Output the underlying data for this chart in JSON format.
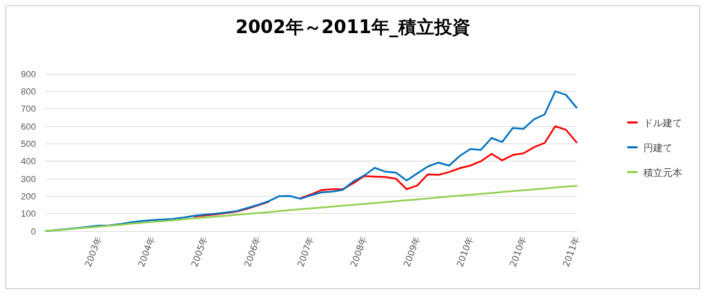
{
  "chart_data": {
    "type": "line",
    "title": "2002年～2011年_積立投資",
    "categories": [
      null,
      null,
      null,
      null,
      null,
      "2003年",
      null,
      null,
      null,
      null,
      "2004年",
      null,
      null,
      null,
      null,
      "2005年",
      null,
      null,
      null,
      null,
      "2006年",
      null,
      null,
      null,
      null,
      "2007年",
      null,
      null,
      null,
      null,
      "2008年",
      null,
      null,
      null,
      null,
      "2009年",
      null,
      null,
      null,
      null,
      "2010年",
      null,
      null,
      null,
      null,
      "2010年",
      null,
      null,
      null,
      null,
      "2011年"
    ],
    "ylim": [
      0,
      900
    ],
    "yticks": [
      0,
      100,
      200,
      300,
      400,
      500,
      600,
      700,
      800,
      900
    ],
    "grid": "y",
    "legend": "right",
    "marker": "none",
    "line_style": "solid",
    "series": [
      {
        "name": "ドル建て",
        "color": "#ff0000",
        "values": [
          null,
          null,
          null,
          null,
          null,
          null,
          null,
          null,
          null,
          null,
          null,
          null,
          null,
          null,
          84,
          90,
          96,
          104,
          112,
          128,
          148,
          168,
          null,
          null,
          188,
          210,
          235,
          240,
          240,
          275,
          315,
          312,
          310,
          300,
          240,
          261,
          325,
          322,
          338,
          360,
          375,
          400,
          442,
          405,
          436,
          445,
          480,
          505,
          600,
          580,
          508
        ]
      },
      {
        "name": "円建て",
        "color": "#0070c0",
        "values": [
          0,
          6,
          12,
          18,
          25,
          32,
          33,
          40,
          50,
          57,
          63,
          66,
          70,
          78,
          88,
          95,
          100,
          107,
          115,
          132,
          150,
          171,
          200,
          201,
          185,
          205,
          222,
          226,
          237,
          285,
          318,
          362,
          340,
          335,
          290,
          330,
          370,
          392,
          375,
          430,
          470,
          465,
          533,
          510,
          590,
          585,
          640,
          668,
          800,
          780,
          707
        ]
      },
      {
        "name": "積立元本",
        "color": "#92d050",
        "values": [
          0,
          5,
          10,
          16,
          21,
          26,
          31,
          36,
          42,
          47,
          52,
          57,
          62,
          68,
          73,
          78,
          83,
          88,
          94,
          99,
          104,
          109,
          114,
          120,
          125,
          130,
          135,
          140,
          146,
          151,
          156,
          161,
          166,
          172,
          177,
          182,
          187,
          192,
          198,
          203,
          208,
          213,
          218,
          224,
          229,
          234,
          239,
          244,
          250,
          255,
          260
        ]
      }
    ]
  }
}
